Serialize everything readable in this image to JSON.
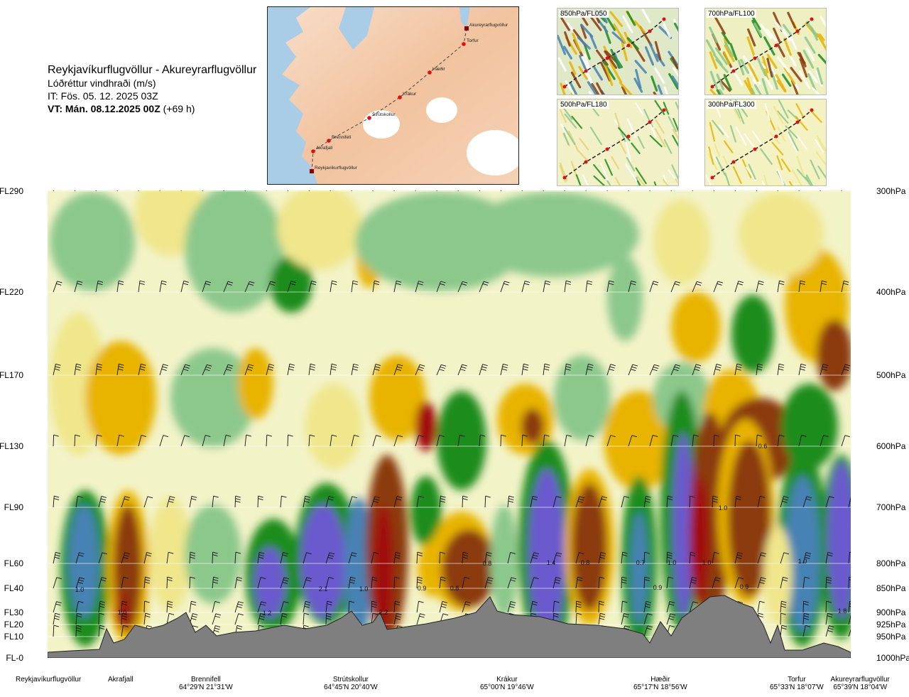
{
  "title": {
    "route": "Reykjavíkurflugvöllur - Akureyrarflugvöllur",
    "variable": "Lóðréttur vindhraði (m/s)",
    "issue_time": "IT: Fös. 05. 12. 2025 03Z",
    "valid_prefix": "VT: Mán. 08.12.2025 00Z",
    "valid_suffix": " (+69 h)"
  },
  "map": {
    "stations": [
      "Akureyrarflugvöllur",
      "Torfur",
      "Hæðir",
      "Krákur",
      "Strútskollur",
      "Brennifell",
      "Akrafjall",
      "Reykjavíkurflugvöllur"
    ]
  },
  "thumbnails": [
    {
      "label": "850hPa/FL050"
    },
    {
      "label": "700hPa/FL100"
    },
    {
      "label": "500hPa/FL180"
    },
    {
      "label": "300hPa/FL300"
    }
  ],
  "colors": {
    "strong_down": "#6a5acd",
    "down": "#4682b4",
    "weak_down": "#1e8c1e",
    "light_down": "#8cc88c",
    "neutral": "#f3f3c8",
    "light_up": "#f0e68c",
    "up": "#e8b400",
    "strong_up": "#8b3a0f",
    "extreme_up": "#a01010",
    "terrain": "#7f7f7f"
  },
  "chart_data": {
    "type": "heatmap",
    "xlabel": "",
    "ylabel": "",
    "left_axis": [
      "FL290",
      "FL220",
      "FL170",
      "FL130",
      "FL90",
      "FL60",
      "FL40",
      "FL30",
      "FL20",
      "FL10",
      "FL-0"
    ],
    "right_axis": [
      "300hPa",
      "400hPa",
      "500hPa",
      "600hPa",
      "700hPa",
      "800hPa",
      "850hPa",
      "900hPa",
      "925hPa",
      "950hPa",
      "1000hPa"
    ],
    "stations": [
      {
        "name": "Reykjavíkurflugvöllur",
        "coord": ""
      },
      {
        "name": "Akrafjall",
        "coord": ""
      },
      {
        "name": "Brennifell",
        "coord": "64°29'N 21°31'W"
      },
      {
        "name": "Strútskollur",
        "coord": "64°45'N 20°40'W"
      },
      {
        "name": "Krákur",
        "coord": "65°00'N 19°46'W"
      },
      {
        "name": "Hæðir",
        "coord": "65°17'N 18°56'W"
      },
      {
        "name": "Torfur",
        "coord": "65°33'N 18°07'W"
      },
      {
        "name": "Akureyrarflugvöllur",
        "coord": "65°39'N 18°04'W"
      }
    ],
    "annotations": [
      "1.0",
      "1.0",
      "1.2",
      "2.1",
      "1.0",
      "2.2",
      "0.9",
      "0.8",
      "0.8",
      "1.4",
      "0.8",
      "0.7",
      "1.0",
      "0.9",
      "1.0",
      "0.9",
      "0.6",
      "1.0",
      "1.0",
      "1.8"
    ]
  }
}
